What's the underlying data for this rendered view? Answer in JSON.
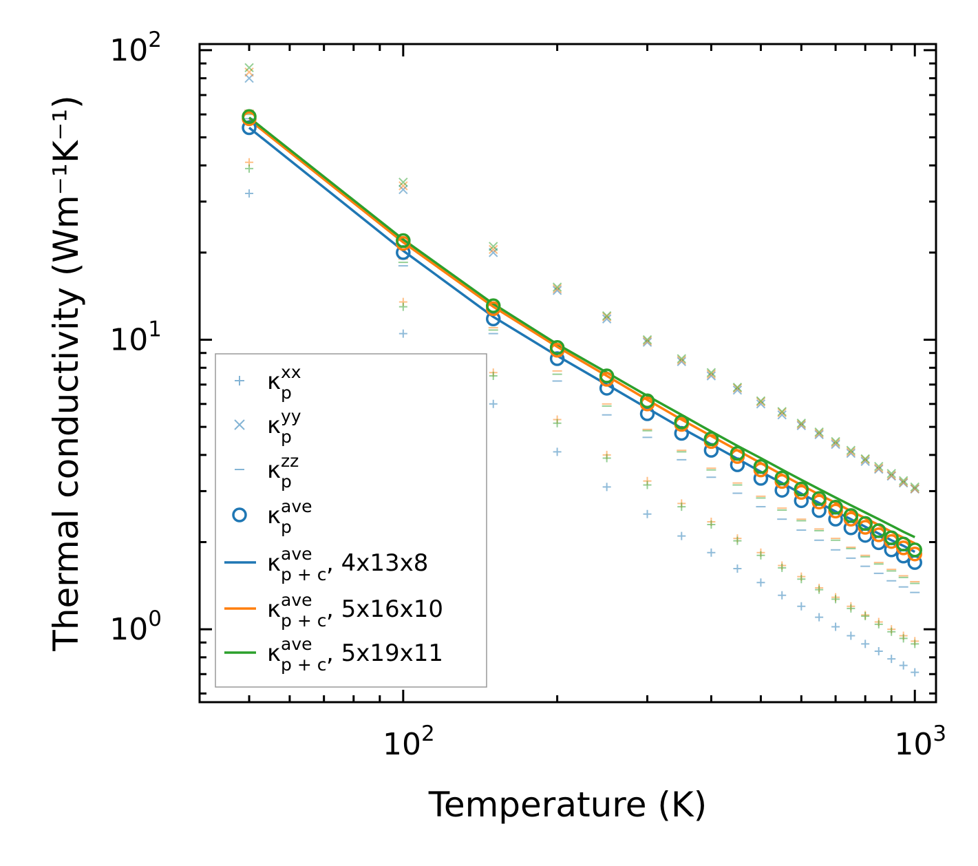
{
  "chart_data": {
    "type": "line",
    "title": "",
    "xlabel": "Temperature (K)",
    "ylabel": "Thermal conductivity (Wm⁻¹K⁻¹)",
    "xscale": "log",
    "yscale": "log",
    "xlim": [
      40,
      1100
    ],
    "ylim": [
      0.56,
      105
    ],
    "x_ticks": [
      {
        "value": 100,
        "base": "10",
        "exp": "2"
      },
      {
        "value": 1000,
        "base": "10",
        "exp": "3"
      }
    ],
    "y_ticks": [
      {
        "value": 1,
        "base": "10",
        "exp": "0"
      },
      {
        "value": 10,
        "base": "10",
        "exp": "1"
      },
      {
        "value": 100,
        "base": "10",
        "exp": "2"
      }
    ],
    "temperatures": [
      50,
      100,
      150,
      200,
      250,
      300,
      350,
      400,
      450,
      500,
      550,
      600,
      650,
      700,
      750,
      800,
      850,
      900,
      950,
      1000
    ],
    "colors": {
      "blue": "#1f77b4",
      "orange": "#ff7f0e",
      "green": "#2ca02c"
    },
    "series": [
      {
        "name": "4x13x8",
        "color": "#1f77b4",
        "k_xx": [
          32,
          10.5,
          6.0,
          4.1,
          3.1,
          2.5,
          2.1,
          1.84,
          1.62,
          1.45,
          1.31,
          1.2,
          1.1,
          1.02,
          0.95,
          0.89,
          0.84,
          0.79,
          0.75,
          0.71
        ],
        "k_yy": [
          80,
          33,
          20,
          14.8,
          11.8,
          9.8,
          8.4,
          7.5,
          6.7,
          6.0,
          5.5,
          5.05,
          4.7,
          4.35,
          4.05,
          3.8,
          3.57,
          3.38,
          3.2,
          3.05
        ],
        "k_zz": [
          58,
          18,
          10.5,
          7.2,
          5.5,
          4.6,
          3.85,
          3.35,
          2.95,
          2.65,
          2.4,
          2.2,
          2.03,
          1.88,
          1.76,
          1.65,
          1.56,
          1.47,
          1.4,
          1.34
        ],
        "k_ave": [
          54,
          20,
          11.8,
          8.6,
          6.8,
          5.55,
          4.75,
          4.15,
          3.7,
          3.32,
          3.02,
          2.78,
          2.57,
          2.4,
          2.24,
          2.11,
          1.99,
          1.88,
          1.79,
          1.7
        ],
        "k_ave_pc": [
          54,
          20.3,
          12.0,
          8.8,
          7.0,
          5.8,
          4.95,
          4.35,
          3.88,
          3.5,
          3.2,
          2.94,
          2.73,
          2.55,
          2.4,
          2.26,
          2.14,
          2.03,
          1.94,
          1.85
        ]
      },
      {
        "name": "5x16x10",
        "color": "#ff7f0e",
        "k_xx": [
          41,
          13.5,
          7.7,
          5.3,
          4.0,
          3.25,
          2.72,
          2.35,
          2.06,
          1.84,
          1.66,
          1.52,
          1.39,
          1.29,
          1.2,
          1.12,
          1.06,
          1.0,
          0.95,
          0.91
        ],
        "k_yy": [
          84,
          34,
          20.5,
          15.0,
          12.0,
          9.9,
          8.5,
          7.6,
          6.8,
          6.1,
          5.6,
          5.1,
          4.75,
          4.4,
          4.1,
          3.85,
          3.6,
          3.4,
          3.22,
          3.06
        ],
        "k_zz": [
          62,
          19,
          11.0,
          7.8,
          6.0,
          4.9,
          4.15,
          3.6,
          3.2,
          2.88,
          2.62,
          2.4,
          2.22,
          2.06,
          1.92,
          1.8,
          1.7,
          1.61,
          1.53,
          1.46
        ],
        "k_ave": [
          58,
          21.5,
          12.8,
          9.2,
          7.3,
          6.0,
          5.1,
          4.45,
          3.95,
          3.55,
          3.24,
          2.97,
          2.75,
          2.56,
          2.4,
          2.25,
          2.12,
          2.01,
          1.91,
          1.82
        ],
        "k_ave_pc": [
          57.5,
          21.7,
          13.0,
          9.45,
          7.5,
          6.2,
          5.3,
          4.65,
          4.15,
          3.75,
          3.42,
          3.15,
          2.92,
          2.73,
          2.56,
          2.42,
          2.29,
          2.17,
          2.07,
          1.98
        ]
      },
      {
        "name": "5x19x11",
        "color": "#2ca02c",
        "k_xx": [
          39,
          13.0,
          7.5,
          5.15,
          3.9,
          3.15,
          2.65,
          2.3,
          2.02,
          1.8,
          1.63,
          1.49,
          1.37,
          1.27,
          1.18,
          1.11,
          1.04,
          0.98,
          0.93,
          0.89
        ],
        "k_yy": [
          87,
          35,
          21,
          15.2,
          12.1,
          10.0,
          8.6,
          7.7,
          6.85,
          6.15,
          5.65,
          5.15,
          4.8,
          4.45,
          4.15,
          3.88,
          3.65,
          3.45,
          3.26,
          3.1
        ],
        "k_zz": [
          60,
          18.5,
          10.8,
          7.6,
          5.9,
          4.85,
          4.1,
          3.55,
          3.15,
          2.84,
          2.58,
          2.37,
          2.19,
          2.03,
          1.9,
          1.78,
          1.68,
          1.59,
          1.51,
          1.44
        ],
        "k_ave": [
          59,
          22,
          13.1,
          9.4,
          7.5,
          6.15,
          5.2,
          4.55,
          4.05,
          3.65,
          3.33,
          3.05,
          2.83,
          2.64,
          2.47,
          2.32,
          2.19,
          2.07,
          1.97,
          1.88
        ],
        "k_ave_pc": [
          58.5,
          22.2,
          13.3,
          9.65,
          7.7,
          6.4,
          5.5,
          4.82,
          4.3,
          3.9,
          3.56,
          3.28,
          3.05,
          2.85,
          2.68,
          2.53,
          2.4,
          2.28,
          2.17,
          2.08
        ]
      }
    ],
    "legend": {
      "placement": "lower-left",
      "entries": [
        {
          "marker": "plus",
          "color": "#1f77b4",
          "sym": "κ",
          "sub": "p",
          "sup": "xx",
          "suffix": ""
        },
        {
          "marker": "cross",
          "color": "#1f77b4",
          "sym": "κ",
          "sub": "p",
          "sup": "yy",
          "suffix": ""
        },
        {
          "marker": "dash",
          "color": "#1f77b4",
          "sym": "κ",
          "sub": "p",
          "sup": "zz",
          "suffix": ""
        },
        {
          "marker": "circle",
          "color": "#1f77b4",
          "sym": "κ",
          "sub": "p",
          "sup": "ave",
          "suffix": ""
        },
        {
          "marker": "line",
          "color": "#1f77b4",
          "sym": "κ",
          "sub": "p + c",
          "sup": "ave",
          "suffix": ", 4x13x8"
        },
        {
          "marker": "line",
          "color": "#ff7f0e",
          "sym": "κ",
          "sub": "p + c",
          "sup": "ave",
          "suffix": ", 5x16x10"
        },
        {
          "marker": "line",
          "color": "#2ca02c",
          "sym": "κ",
          "sub": "p + c",
          "sup": "ave",
          "suffix": ", 5x19x11"
        }
      ]
    }
  }
}
